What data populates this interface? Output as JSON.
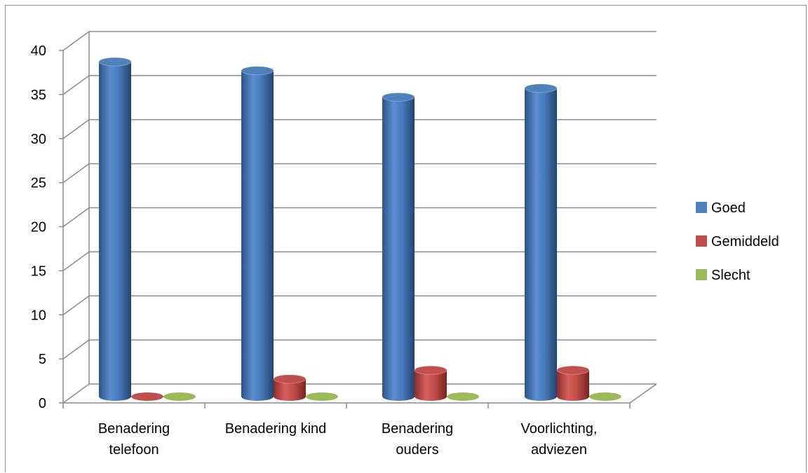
{
  "chart_data": {
    "type": "bar",
    "variant": "3d-cylinder",
    "title": "",
    "xlabel": "",
    "ylabel": "",
    "ylim": [
      0,
      40
    ],
    "yticks": [
      0,
      5,
      10,
      15,
      20,
      25,
      30,
      35,
      40
    ],
    "grid": true,
    "legend_position": "right",
    "categories": [
      [
        "Benadering",
        "telefoon"
      ],
      [
        "Benadering kind"
      ],
      [
        "Benadering",
        "ouders"
      ],
      [
        "Voorlichting,",
        "adviezen"
      ]
    ],
    "series": [
      {
        "name": "Goed",
        "color": "#4f81bd",
        "values": [
          38,
          37,
          34,
          35
        ]
      },
      {
        "name": "Gemiddeld",
        "color": "#c0504d",
        "values": [
          0,
          2,
          3,
          3
        ]
      },
      {
        "name": "Slecht",
        "color": "#9bbb59",
        "values": [
          0,
          0,
          0,
          0
        ]
      }
    ]
  }
}
